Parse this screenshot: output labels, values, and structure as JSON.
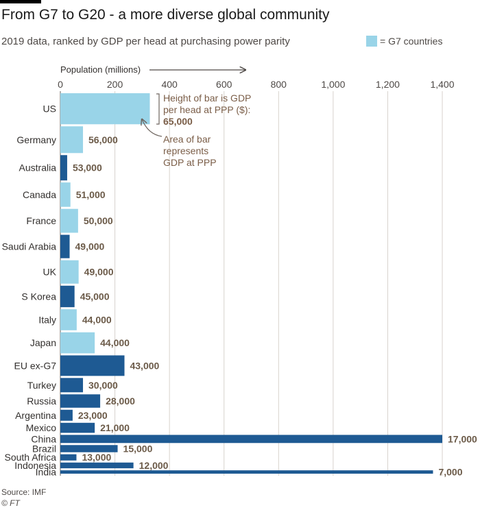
{
  "header": {
    "title": "From G7 to G20 - a more diverse global community",
    "subtitle": "2019 data, ranked by GDP per head at purchasing power parity"
  },
  "legend": {
    "label": "= G7 countries",
    "g7_color": "#99d4e8"
  },
  "colors": {
    "g7": "#99d4e8",
    "other": "#1e5a93",
    "grid": "#d8d2cc"
  },
  "footer": {
    "source": "Source: IMF",
    "credit": "© FT"
  },
  "annotations": {
    "height_note": [
      "Height of bar is GDP",
      "per head at PPP ($):"
    ],
    "height_value": "65,000",
    "area_note": [
      "Area of bar",
      "represents",
      "GDP at PPP"
    ]
  },
  "chart_data": {
    "type": "bar",
    "orientation": "variable-width horizontal",
    "xlabel": "Population (millions)",
    "xlim": [
      0,
      1400
    ],
    "xticks": [
      0,
      200,
      400,
      600,
      800,
      1000,
      1200,
      1400
    ],
    "xtick_labels": [
      "0",
      "200",
      "400",
      "600",
      "800",
      "1,000",
      "1,200",
      "1,400"
    ],
    "grid": true,
    "legend_position": "top-right",
    "value_label_note": "bar length = population (millions); bar height = GDP per head at PPP ($)",
    "categories": [
      {
        "name": "US",
        "population": 328,
        "gdp_per_head": 65000,
        "label": "",
        "g7": true
      },
      {
        "name": "Germany",
        "population": 83,
        "gdp_per_head": 56000,
        "label": "56,000",
        "g7": true
      },
      {
        "name": "Australia",
        "population": 25,
        "gdp_per_head": 53000,
        "label": "53,000",
        "g7": false
      },
      {
        "name": "Canada",
        "population": 37,
        "gdp_per_head": 51000,
        "label": "51,000",
        "g7": true
      },
      {
        "name": "France",
        "population": 65,
        "gdp_per_head": 50000,
        "label": "50,000",
        "g7": true
      },
      {
        "name": "Saudi Arabia",
        "population": 34,
        "gdp_per_head": 49000,
        "label": "49,000",
        "g7": false
      },
      {
        "name": "UK",
        "population": 67,
        "gdp_per_head": 49000,
        "label": "49,000",
        "g7": true
      },
      {
        "name": "S Korea",
        "population": 52,
        "gdp_per_head": 45000,
        "label": "45,000",
        "g7": false
      },
      {
        "name": "Italy",
        "population": 60,
        "gdp_per_head": 44000,
        "label": "44,000",
        "g7": true
      },
      {
        "name": "Japan",
        "population": 126,
        "gdp_per_head": 44000,
        "label": "44,000",
        "g7": true
      },
      {
        "name": "EU ex-G7",
        "population": 235,
        "gdp_per_head": 43000,
        "label": "43,000",
        "g7": false
      },
      {
        "name": "Turkey",
        "population": 83,
        "gdp_per_head": 30000,
        "label": "30,000",
        "g7": false
      },
      {
        "name": "Russia",
        "population": 146,
        "gdp_per_head": 28000,
        "label": "28,000",
        "g7": false
      },
      {
        "name": "Argentina",
        "population": 45,
        "gdp_per_head": 23000,
        "label": "23,000",
        "g7": false
      },
      {
        "name": "Mexico",
        "population": 126,
        "gdp_per_head": 21000,
        "label": "21,000",
        "g7": false
      },
      {
        "name": "China",
        "population": 1400,
        "gdp_per_head": 17000,
        "label": "17,000",
        "g7": false
      },
      {
        "name": "Brazil",
        "population": 210,
        "gdp_per_head": 15000,
        "label": "15,000",
        "g7": false
      },
      {
        "name": "South Africa",
        "population": 59,
        "gdp_per_head": 13000,
        "label": "13,000",
        "g7": false
      },
      {
        "name": "Indonesia",
        "population": 268,
        "gdp_per_head": 12000,
        "label": "12,000",
        "g7": false
      },
      {
        "name": "India",
        "population": 1366,
        "gdp_per_head": 7000,
        "label": "7,000",
        "g7": false
      }
    ]
  }
}
